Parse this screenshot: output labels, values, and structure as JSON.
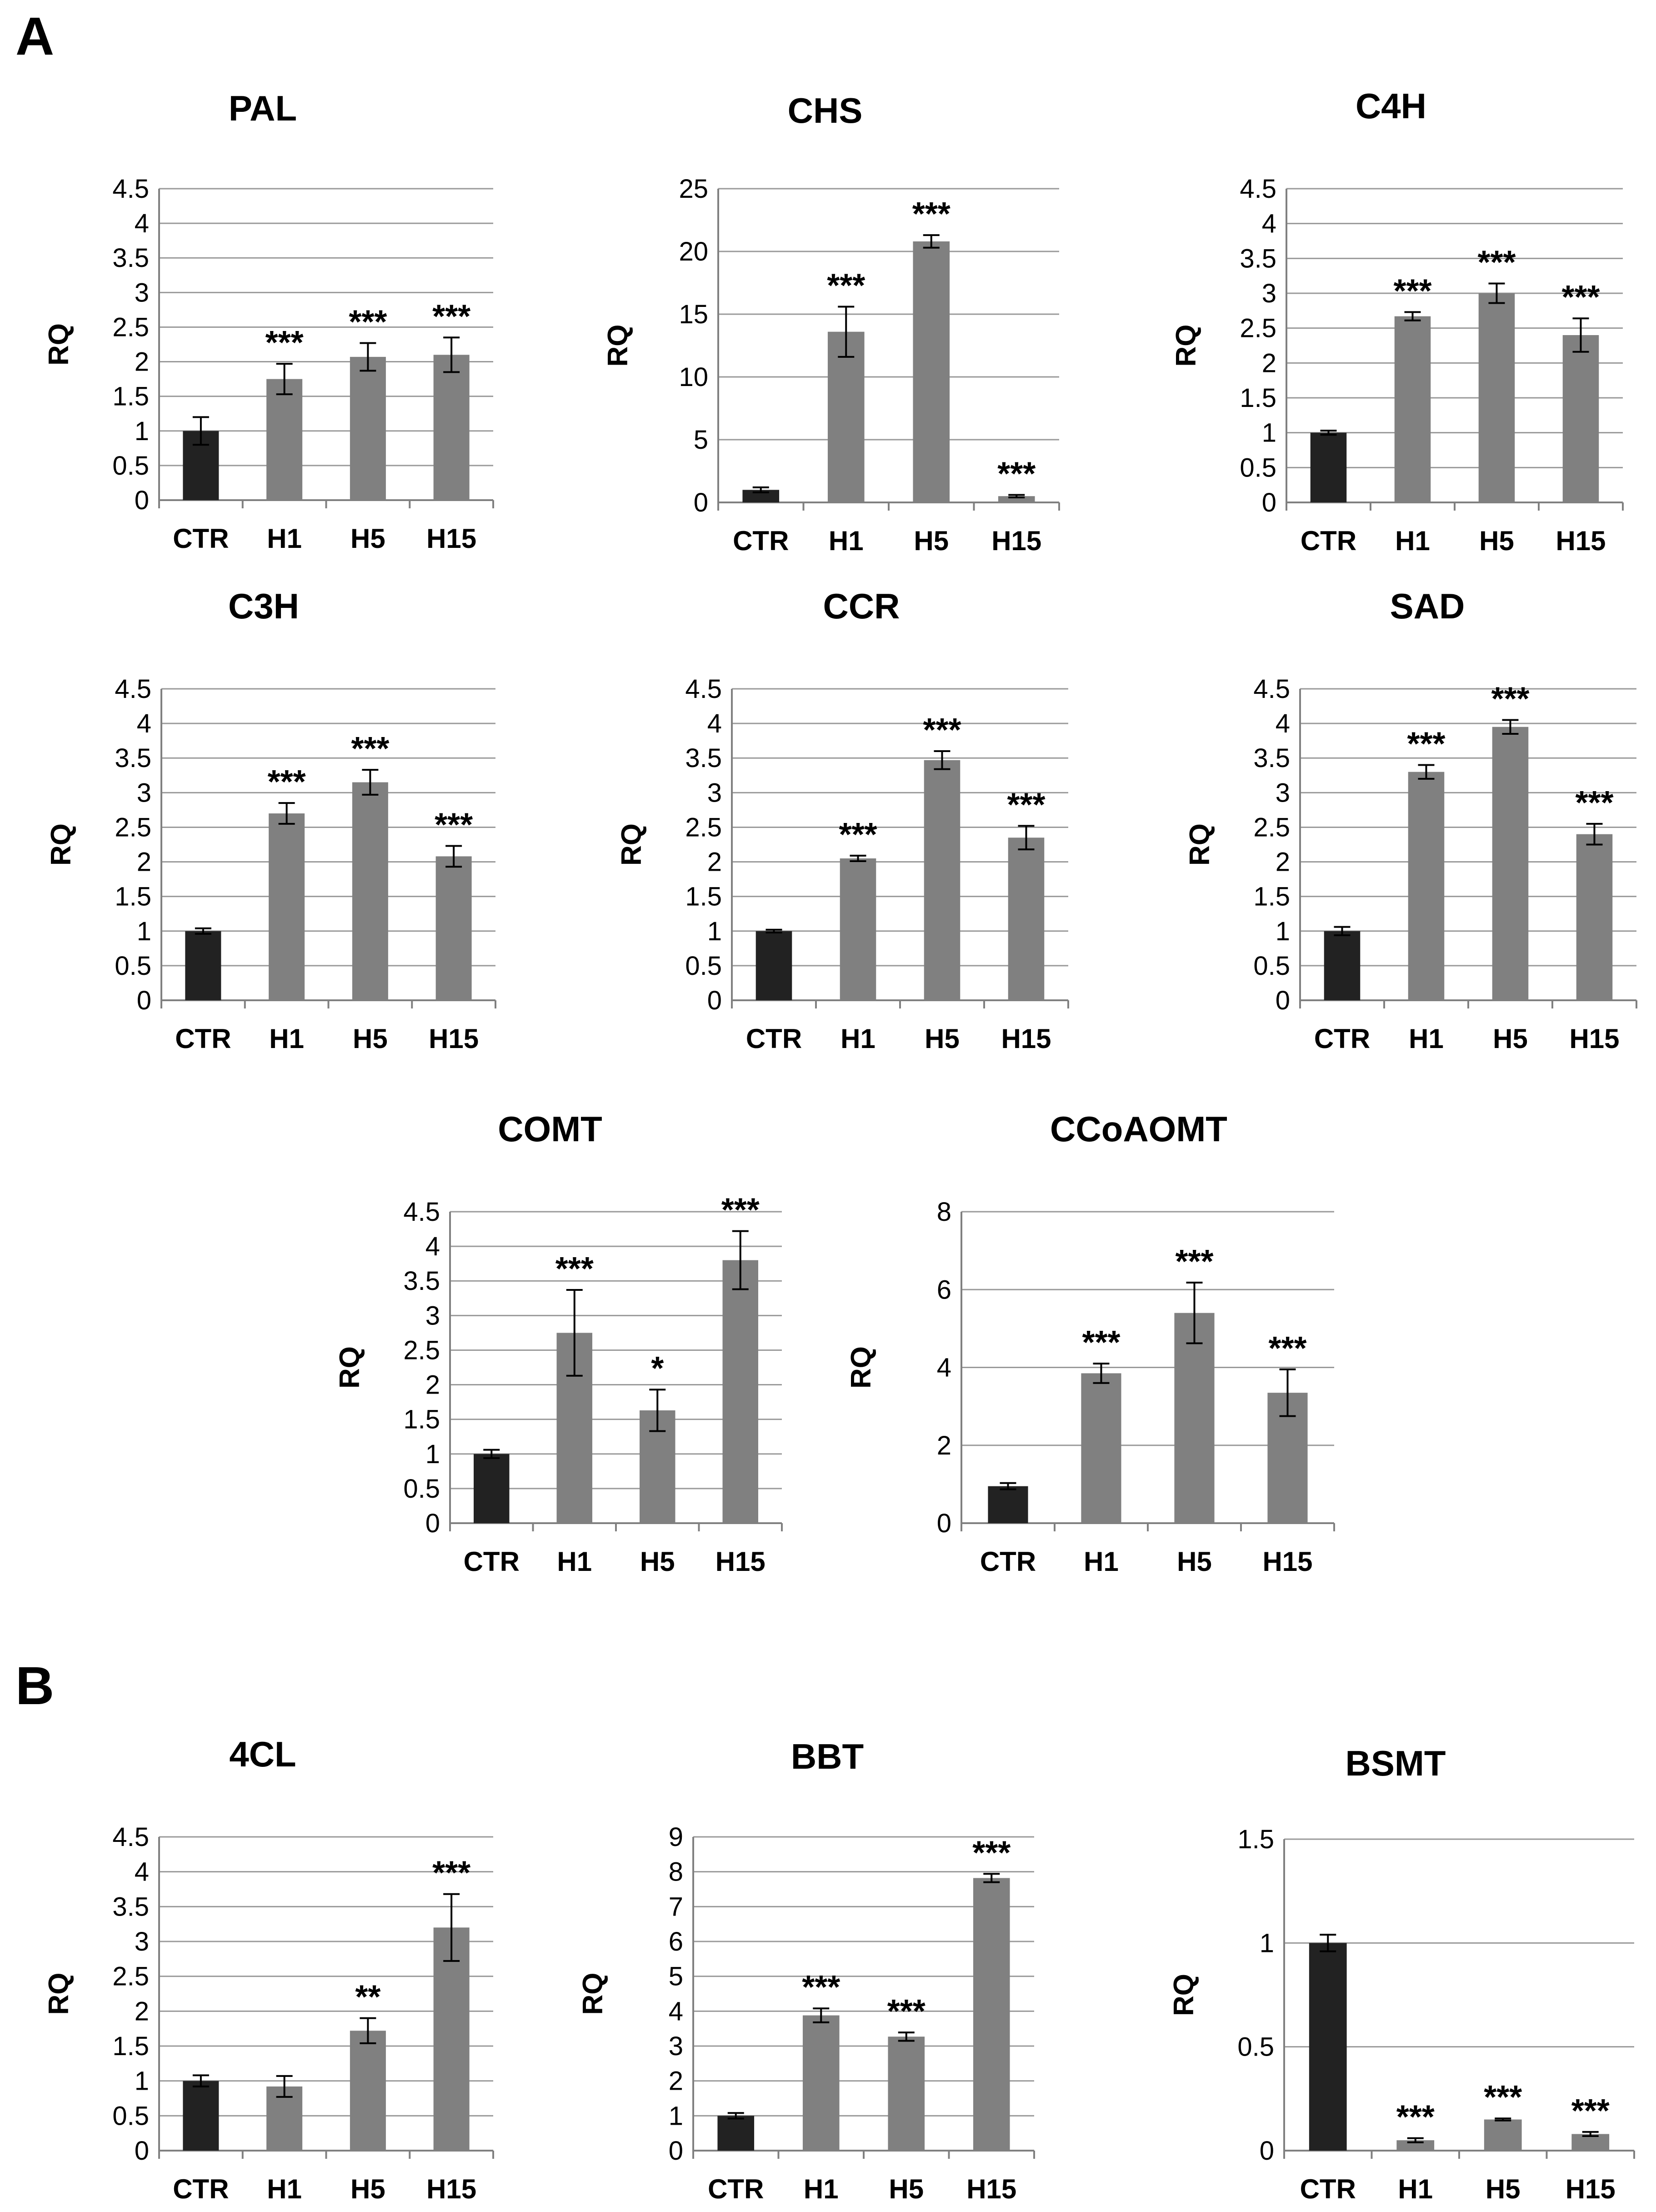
{
  "panels": [
    {
      "label": "A"
    },
    {
      "label": "B"
    }
  ],
  "colors": {
    "control": "#222222",
    "treated": "#808080",
    "grid": "#9a9a9a",
    "axis": "#808080",
    "text": "#000000"
  },
  "y_axis_label": "RQ",
  "chart_data": [
    {
      "type": "bar",
      "panel": "A",
      "title": "PAL",
      "categories": [
        "CTR",
        "H1",
        "H5",
        "H15"
      ],
      "values": [
        1.0,
        1.75,
        2.07,
        2.1
      ],
      "errors": [
        0.2,
        0.22,
        0.2,
        0.25
      ],
      "significance": [
        "",
        "***",
        "***",
        "***"
      ],
      "ylim": [
        0,
        4.5
      ],
      "ytick_labels": [
        "0",
        "0.5",
        "1",
        "1.5",
        "2",
        "2.5",
        "3",
        "3.5",
        "4",
        "4.5"
      ],
      "ylabel": "RQ"
    },
    {
      "type": "bar",
      "panel": "A",
      "title": "CHS",
      "categories": [
        "CTR",
        "H1",
        "H5",
        "H15"
      ],
      "values": [
        1.0,
        13.6,
        20.8,
        0.5
      ],
      "errors": [
        0.2,
        2.0,
        0.5,
        0.1
      ],
      "significance": [
        "",
        "***",
        "***",
        "***"
      ],
      "ylim": [
        0,
        25
      ],
      "ytick_labels": [
        "0",
        "5",
        "10",
        "15",
        "20",
        "25"
      ],
      "ylabel": "RQ"
    },
    {
      "type": "bar",
      "panel": "A",
      "title": "C4H",
      "categories": [
        "CTR",
        "H1",
        "H5",
        "H15"
      ],
      "values": [
        1.0,
        2.67,
        3.0,
        2.4
      ],
      "errors": [
        0.03,
        0.06,
        0.14,
        0.24
      ],
      "significance": [
        "",
        "***",
        "***",
        "***"
      ],
      "ylim": [
        0,
        4.5
      ],
      "ytick_labels": [
        "0",
        "0.5",
        "1",
        "1.5",
        "2",
        "2.5",
        "3",
        "3.5",
        "4",
        "4.5"
      ],
      "ylabel": "RQ"
    },
    {
      "type": "bar",
      "panel": "A",
      "title": "C3H",
      "categories": [
        "CTR",
        "H1",
        "H5",
        "H15"
      ],
      "values": [
        1.0,
        2.7,
        3.15,
        2.08
      ],
      "errors": [
        0.04,
        0.15,
        0.18,
        0.15
      ],
      "significance": [
        "",
        "***",
        "***",
        "***"
      ],
      "ylim": [
        0,
        4.5
      ],
      "ytick_labels": [
        "0",
        "0.5",
        "1",
        "1.5",
        "2",
        "2.5",
        "3",
        "3.5",
        "4",
        "4.5"
      ],
      "ylabel": "RQ"
    },
    {
      "type": "bar",
      "panel": "A",
      "title": "CCR",
      "categories": [
        "CTR",
        "H1",
        "H5",
        "H15"
      ],
      "values": [
        1.0,
        2.05,
        3.47,
        2.35
      ],
      "errors": [
        0.02,
        0.04,
        0.13,
        0.17
      ],
      "significance": [
        "",
        "***",
        "***",
        "***"
      ],
      "ylim": [
        0,
        4.5
      ],
      "ytick_labels": [
        "0",
        "0.5",
        "1",
        "1.5",
        "2",
        "2.5",
        "3",
        "3.5",
        "4",
        "4.5"
      ],
      "ylabel": "RQ"
    },
    {
      "type": "bar",
      "panel": "A",
      "title": "SAD",
      "categories": [
        "CTR",
        "H1",
        "H5",
        "H15"
      ],
      "values": [
        1.0,
        3.3,
        3.95,
        2.4
      ],
      "errors": [
        0.06,
        0.1,
        0.1,
        0.15
      ],
      "significance": [
        "",
        "***",
        "***",
        "***"
      ],
      "ylim": [
        0,
        4.5
      ],
      "ytick_labels": [
        "0",
        "0.5",
        "1",
        "1.5",
        "2",
        "2.5",
        "3",
        "3.5",
        "4",
        "4.5"
      ],
      "ylabel": "RQ"
    },
    {
      "type": "bar",
      "panel": "A",
      "title": "COMT",
      "categories": [
        "CTR",
        "H1",
        "H5",
        "H15"
      ],
      "values": [
        1.0,
        2.75,
        1.63,
        3.8
      ],
      "errors": [
        0.06,
        0.62,
        0.3,
        0.42
      ],
      "significance": [
        "",
        "***",
        "*",
        "***"
      ],
      "ylim": [
        0,
        4.5
      ],
      "ytick_labels": [
        "0",
        "0.5",
        "1",
        "1.5",
        "2",
        "2.5",
        "3",
        "3.5",
        "4",
        "4.5"
      ],
      "ylabel": "RQ"
    },
    {
      "type": "bar",
      "panel": "A",
      "title": "CCoAOMT",
      "categories": [
        "CTR",
        "H1",
        "H5",
        "H15"
      ],
      "values": [
        0.95,
        3.85,
        5.4,
        3.35
      ],
      "errors": [
        0.08,
        0.25,
        0.78,
        0.6
      ],
      "significance": [
        "",
        "***",
        "***",
        "***"
      ],
      "ylim": [
        0,
        8
      ],
      "ytick_labels": [
        "0",
        "2",
        "4",
        "6",
        "8"
      ],
      "ylabel": "RQ"
    },
    {
      "type": "bar",
      "panel": "B",
      "title": "4CL",
      "categories": [
        "CTR",
        "H1",
        "H5",
        "H15"
      ],
      "values": [
        1.0,
        0.92,
        1.72,
        3.2
      ],
      "errors": [
        0.08,
        0.15,
        0.18,
        0.48
      ],
      "significance": [
        "",
        "",
        "**",
        "***"
      ],
      "ylim": [
        0,
        4.5
      ],
      "ytick_labels": [
        "0",
        "0.5",
        "1",
        "1.5",
        "2",
        "2.5",
        "3",
        "3.5",
        "4",
        "4.5"
      ],
      "ylabel": "RQ"
    },
    {
      "type": "bar",
      "panel": "B",
      "title": "BBT",
      "categories": [
        "CTR",
        "H1",
        "H5",
        "H15"
      ],
      "values": [
        1.0,
        3.88,
        3.27,
        7.82
      ],
      "errors": [
        0.08,
        0.2,
        0.12,
        0.12
      ],
      "significance": [
        "",
        "***",
        "***",
        "***"
      ],
      "ylim": [
        0,
        9
      ],
      "ytick_labels": [
        "0",
        "1",
        "2",
        "3",
        "4",
        "5",
        "6",
        "7",
        "8",
        "9"
      ],
      "ylabel": "RQ"
    },
    {
      "type": "bar",
      "panel": "B",
      "title": "BSMT",
      "categories": [
        "CTR",
        "H1",
        "H5",
        "H15"
      ],
      "values": [
        1.0,
        0.05,
        0.15,
        0.08
      ],
      "errors": [
        0.04,
        0.01,
        0.005,
        0.01
      ],
      "significance": [
        "",
        "***",
        "***",
        "***"
      ],
      "ylim": [
        0,
        1.5
      ],
      "ytick_labels": [
        "0",
        "0.5",
        "1",
        "1.5"
      ],
      "ylabel": "RQ"
    }
  ]
}
